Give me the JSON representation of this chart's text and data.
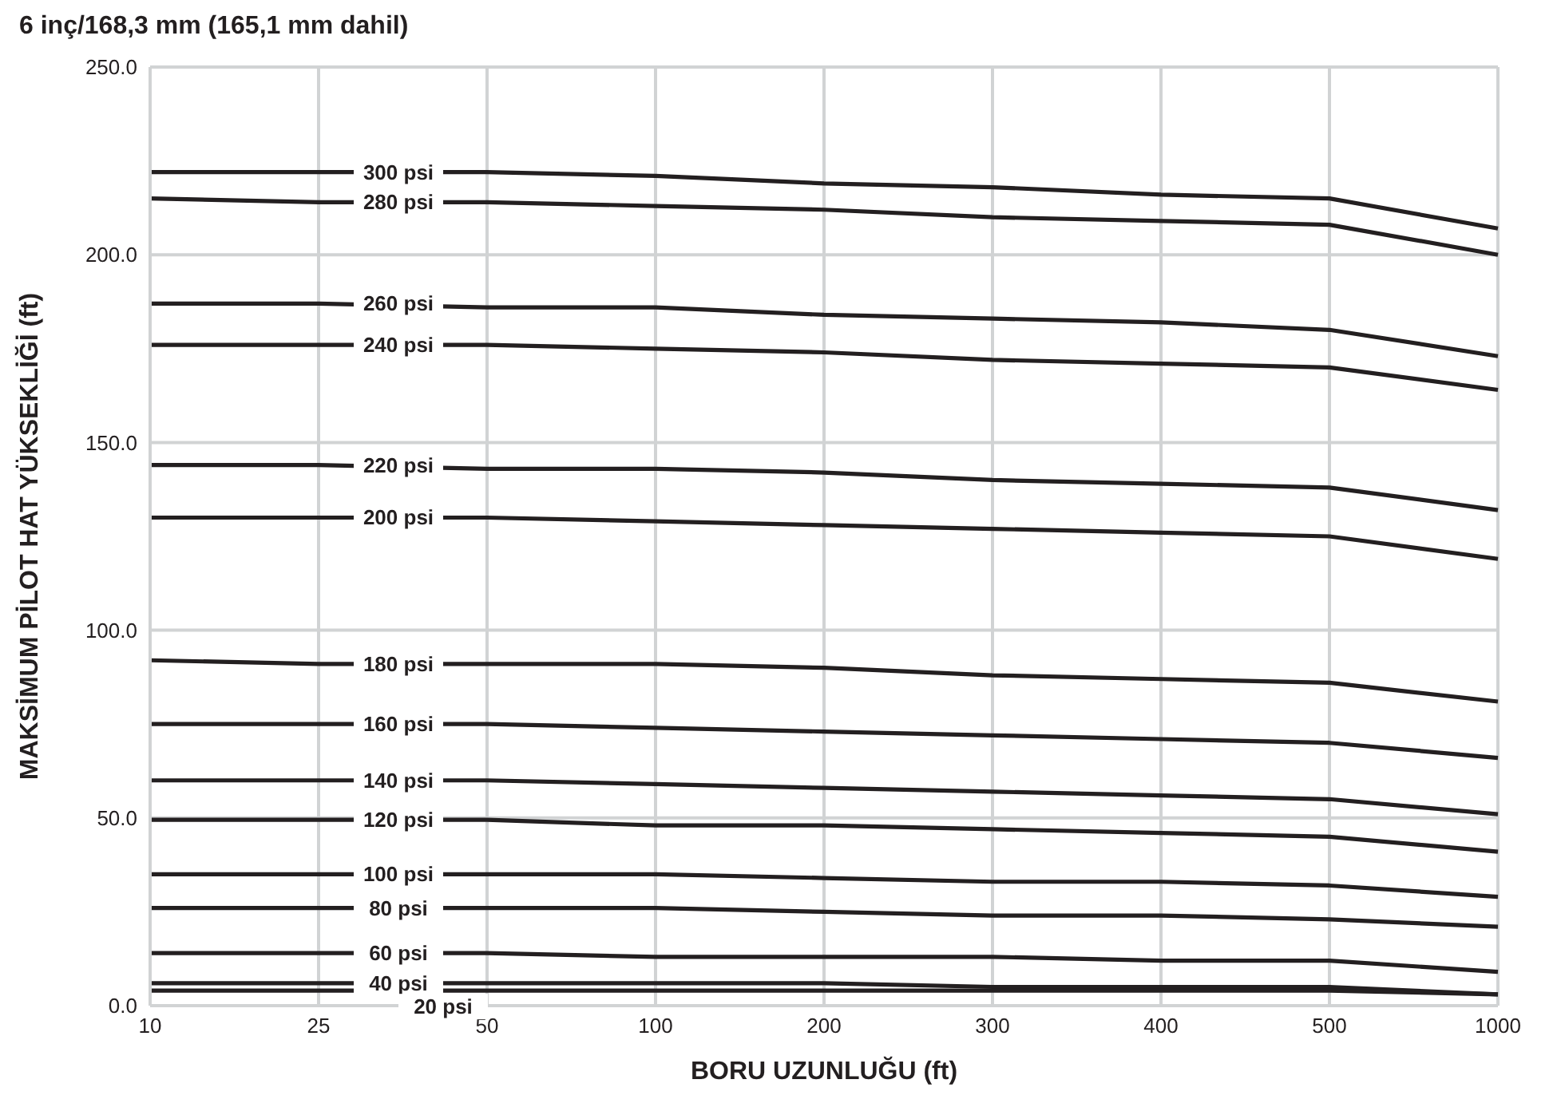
{
  "chart_data": {
    "type": "line",
    "title": "6 inç/168,3 mm (165,1 mm dahil)",
    "xlabel": "BORU UZUNLUĞU (ft)",
    "ylabel": "MAKSİMUM PİLOT HAT YÜKSEKLİĞİ (ft)",
    "categories": [
      "10",
      "25",
      "50",
      "100",
      "200",
      "300",
      "400",
      "500",
      "1000"
    ],
    "ylim": [
      0,
      250
    ],
    "yticks": [
      {
        "value": 0,
        "label": "0.0"
      },
      {
        "value": 50,
        "label": "50.0"
      },
      {
        "value": 100,
        "label": "100.0"
      },
      {
        "value": 150,
        "label": "150.0"
      },
      {
        "value": 200,
        "label": "200.0"
      },
      {
        "value": 250,
        "label": "250.0"
      }
    ],
    "grid": true,
    "legend": false,
    "marker": "none",
    "line_style": "solid",
    "series": [
      {
        "name": "300 psi",
        "color": "#231f20",
        "values": [
          222,
          222,
          222,
          221,
          219,
          218,
          216,
          215,
          207
        ]
      },
      {
        "name": "280 psi",
        "color": "#231f20",
        "values": [
          215,
          214,
          214,
          213,
          212,
          210,
          209,
          208,
          200
        ]
      },
      {
        "name": "260 psi",
        "color": "#231f20",
        "values": [
          187,
          187,
          186,
          186,
          184,
          183,
          182,
          180,
          173
        ]
      },
      {
        "name": "240 psi",
        "color": "#231f20",
        "values": [
          176,
          176,
          176,
          175,
          174,
          172,
          171,
          170,
          164
        ]
      },
      {
        "name": "220 psi",
        "color": "#231f20",
        "values": [
          144,
          144,
          143,
          143,
          142,
          140,
          139,
          138,
          132
        ]
      },
      {
        "name": "200 psi",
        "color": "#231f20",
        "values": [
          130,
          130,
          130,
          129,
          128,
          127,
          126,
          125,
          119
        ]
      },
      {
        "name": "180 psi",
        "color": "#231f20",
        "values": [
          92,
          91,
          91,
          91,
          90,
          88,
          87,
          86,
          81
        ]
      },
      {
        "name": "160 psi",
        "color": "#231f20",
        "values": [
          75,
          75,
          75,
          74,
          73,
          72,
          71,
          70,
          66
        ]
      },
      {
        "name": "140 psi",
        "color": "#231f20",
        "values": [
          60,
          60,
          60,
          59,
          58,
          57,
          56,
          55,
          51
        ]
      },
      {
        "name": "120 psi",
        "color": "#231f20",
        "values": [
          49.5,
          49.5,
          49.5,
          48,
          48,
          47,
          46,
          45,
          41
        ]
      },
      {
        "name": "100 psi",
        "color": "#231f20",
        "values": [
          35,
          35,
          35,
          35,
          34,
          33,
          33,
          32,
          29
        ]
      },
      {
        "name": "80 psi",
        "color": "#231f20",
        "values": [
          26,
          26,
          26,
          26,
          25,
          24,
          24,
          23,
          21
        ]
      },
      {
        "name": "60 psi",
        "color": "#231f20",
        "values": [
          14,
          14,
          14,
          13,
          13,
          13,
          12,
          12,
          9
        ]
      },
      {
        "name": "40 psi",
        "color": "#231f20",
        "values": [
          6,
          6,
          6,
          6,
          6,
          5,
          5,
          5,
          3
        ]
      },
      {
        "name": "20 psi",
        "color": "#231f20",
        "values": [
          4,
          4,
          4,
          4,
          4,
          4,
          4,
          4,
          3
        ]
      }
    ]
  }
}
